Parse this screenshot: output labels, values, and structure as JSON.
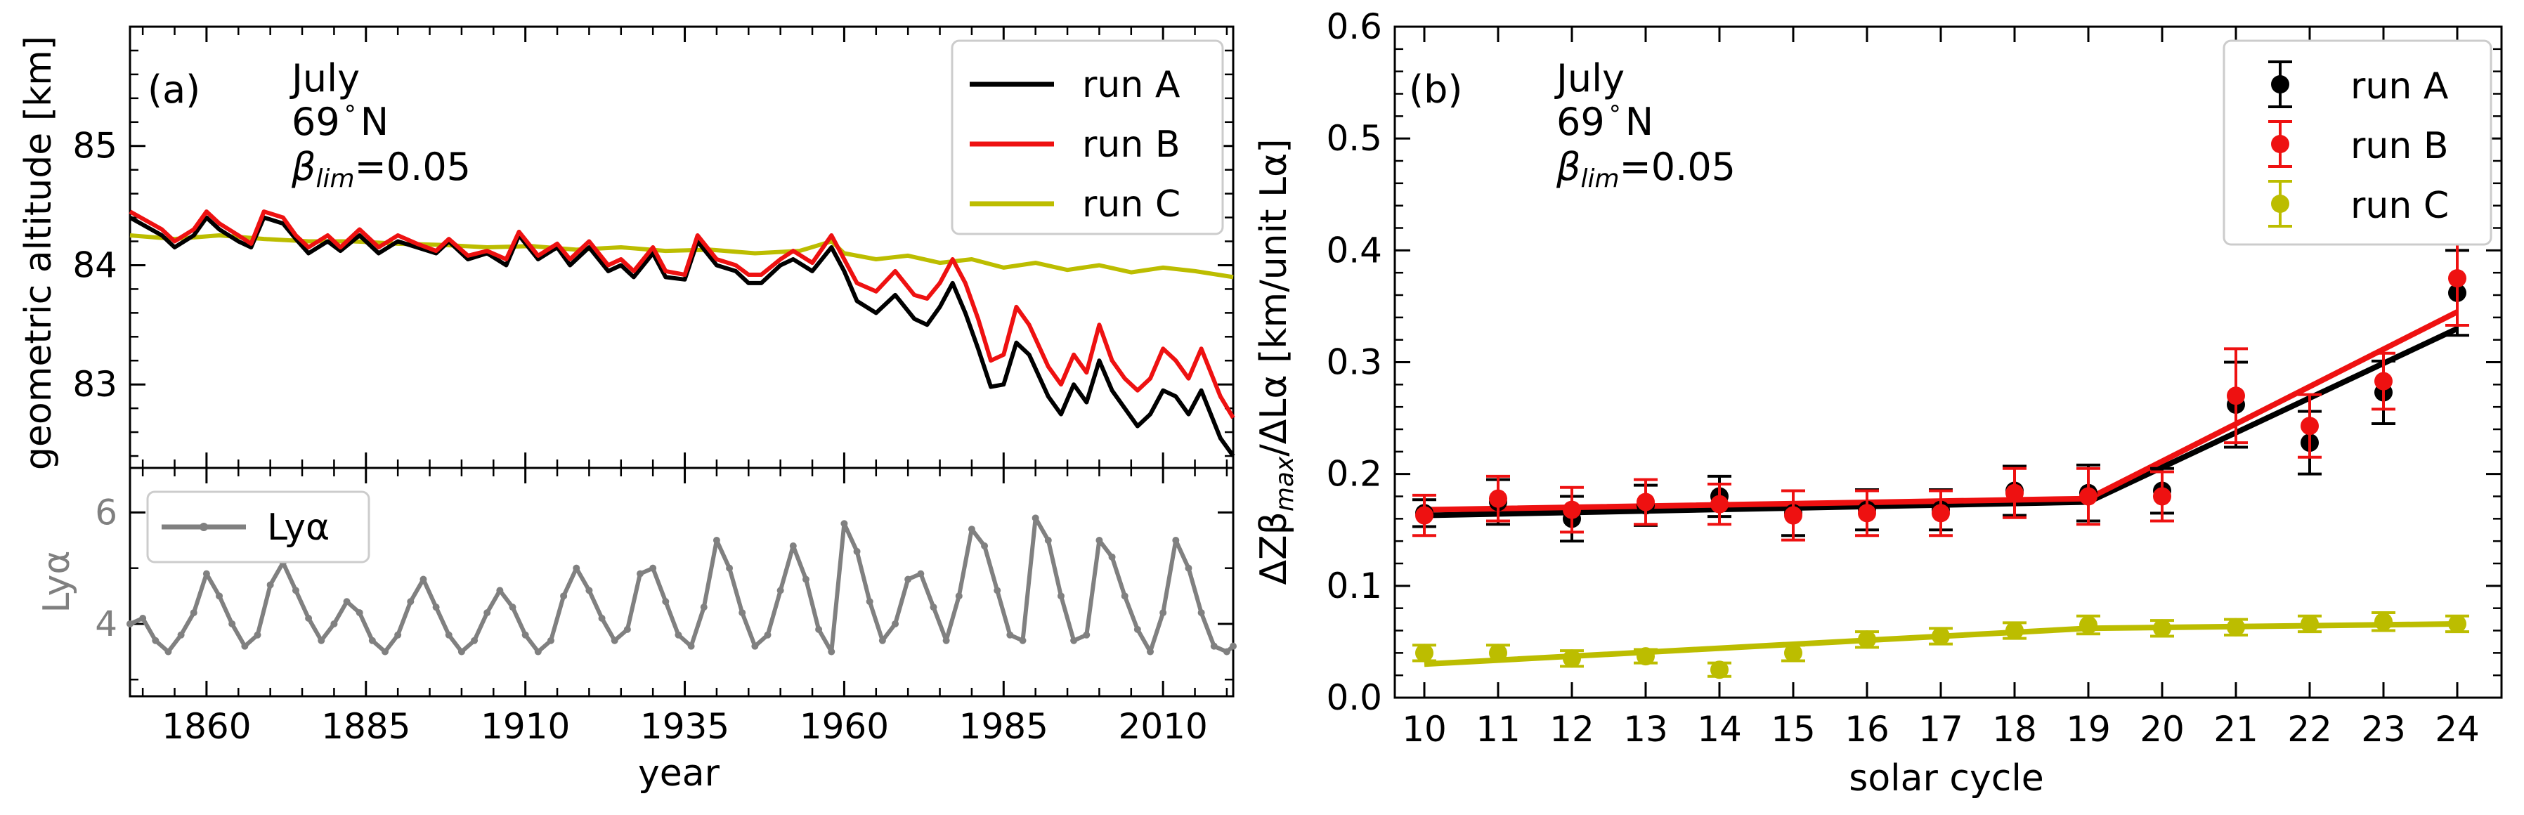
{
  "chart_data": [
    {
      "panel": "(a)",
      "type": "line",
      "annotation": [
        "July",
        "69",
        "N"
      ],
      "beta_sym": "β",
      "beta_sub": "lim",
      "beta_val": "=0.05",
      "degree_sym": "°",
      "ylabel": "geometric altitude [km]",
      "xlim": [
        1848,
        2021
      ],
      "ylim": [
        82.3,
        86.0
      ],
      "yticks": [
        83,
        84,
        85
      ],
      "legend": [
        "run A",
        "run B",
        "run C"
      ],
      "colors": {
        "run A": "#000000",
        "run B": "#ee1111",
        "run C": "#bcbd00"
      },
      "series": [
        {
          "name": "run A",
          "x": [
            1848,
            1853,
            1855,
            1858,
            1860,
            1862,
            1865,
            1867,
            1869,
            1872,
            1874,
            1876,
            1879,
            1881,
            1884,
            1887,
            1890,
            1893,
            1896,
            1898,
            1901,
            1904,
            1907,
            1909,
            1912,
            1915,
            1917,
            1920,
            1923,
            1925,
            1927,
            1930,
            1932,
            1935,
            1937,
            1940,
            1943,
            1945,
            1947,
            1950,
            1952,
            1955,
            1958,
            1960,
            1962,
            1965,
            1968,
            1971,
            1973,
            1975,
            1977,
            1979,
            1981,
            1983,
            1985,
            1987,
            1989,
            1992,
            1994,
            1996,
            1998,
            2000,
            2002,
            2004,
            2006,
            2008,
            2010,
            2012,
            2014,
            2016,
            2019,
            2021
          ],
          "y": [
            84.4,
            84.25,
            84.15,
            84.25,
            84.4,
            84.3,
            84.2,
            84.15,
            84.4,
            84.35,
            84.22,
            84.1,
            84.2,
            84.12,
            84.25,
            84.1,
            84.2,
            84.15,
            84.1,
            84.2,
            84.05,
            84.1,
            84.0,
            84.25,
            84.05,
            84.15,
            84.0,
            84.15,
            83.95,
            84.0,
            83.9,
            84.1,
            83.9,
            83.88,
            84.2,
            84.0,
            83.95,
            83.85,
            83.85,
            84.0,
            84.05,
            83.95,
            84.15,
            83.95,
            83.7,
            83.6,
            83.75,
            83.55,
            83.5,
            83.65,
            83.85,
            83.6,
            83.3,
            82.98,
            83.0,
            83.35,
            83.25,
            82.9,
            82.75,
            83.0,
            82.85,
            83.2,
            82.95,
            82.8,
            82.65,
            82.75,
            82.95,
            82.9,
            82.75,
            82.95,
            82.55,
            82.4
          ]
        },
        {
          "name": "run B",
          "x": [
            1848,
            1853,
            1855,
            1858,
            1860,
            1862,
            1865,
            1867,
            1869,
            1872,
            1874,
            1876,
            1879,
            1881,
            1884,
            1887,
            1890,
            1893,
            1896,
            1898,
            1901,
            1904,
            1907,
            1909,
            1912,
            1915,
            1917,
            1920,
            1923,
            1925,
            1927,
            1930,
            1932,
            1935,
            1937,
            1940,
            1943,
            1945,
            1947,
            1950,
            1952,
            1955,
            1958,
            1960,
            1962,
            1965,
            1968,
            1971,
            1973,
            1975,
            1977,
            1979,
            1981,
            1983,
            1985,
            1987,
            1989,
            1992,
            1994,
            1996,
            1998,
            2000,
            2002,
            2004,
            2006,
            2008,
            2010,
            2012,
            2014,
            2016,
            2019,
            2021
          ],
          "y": [
            84.45,
            84.3,
            84.2,
            84.3,
            84.45,
            84.35,
            84.25,
            84.18,
            84.45,
            84.4,
            84.25,
            84.15,
            84.25,
            84.15,
            84.3,
            84.15,
            84.25,
            84.18,
            84.12,
            84.22,
            84.08,
            84.12,
            84.05,
            84.28,
            84.08,
            84.18,
            84.05,
            84.2,
            84.0,
            84.05,
            83.95,
            84.15,
            83.95,
            83.92,
            84.25,
            84.05,
            84.0,
            83.92,
            83.92,
            84.05,
            84.12,
            84.02,
            84.25,
            84.05,
            83.85,
            83.78,
            83.95,
            83.75,
            83.72,
            83.85,
            84.05,
            83.85,
            83.55,
            83.2,
            83.25,
            83.65,
            83.5,
            83.15,
            83.0,
            83.25,
            83.1,
            83.5,
            83.2,
            83.05,
            82.95,
            83.05,
            83.3,
            83.2,
            83.05,
            83.3,
            82.9,
            82.72
          ]
        },
        {
          "name": "run C",
          "x": [
            1848,
            1855,
            1862,
            1869,
            1876,
            1883,
            1890,
            1897,
            1904,
            1911,
            1918,
            1925,
            1932,
            1939,
            1946,
            1953,
            1958,
            1960,
            1965,
            1970,
            1975,
            1980,
            1985,
            1990,
            1995,
            2000,
            2005,
            2010,
            2015,
            2021
          ],
          "y": [
            84.25,
            84.22,
            84.25,
            84.22,
            84.2,
            84.2,
            84.18,
            84.17,
            84.15,
            84.16,
            84.13,
            84.15,
            84.12,
            84.13,
            84.1,
            84.12,
            84.2,
            84.1,
            84.05,
            84.08,
            84.02,
            84.05,
            83.98,
            84.02,
            83.96,
            84.0,
            83.94,
            83.98,
            83.95,
            83.9
          ]
        }
      ]
    },
    {
      "panel": "(a) lower",
      "type": "line",
      "ylabel": "Lyα",
      "xlabel": "year",
      "xlim": [
        1848,
        2021
      ],
      "ylim": [
        2.7,
        6.8
      ],
      "xticks": [
        1860,
        1885,
        1910,
        1935,
        1960,
        1985,
        2010
      ],
      "yticks": [
        4,
        6
      ],
      "legend": [
        "Lyα"
      ],
      "color": "#808080",
      "series": [
        {
          "name": "Lyα",
          "x": [
            1848,
            1850,
            1852,
            1854,
            1856,
            1858,
            1860,
            1862,
            1864,
            1866,
            1868,
            1870,
            1872,
            1874,
            1876,
            1878,
            1880,
            1882,
            1884,
            1886,
            1888,
            1890,
            1892,
            1894,
            1896,
            1898,
            1900,
            1902,
            1904,
            1906,
            1908,
            1910,
            1912,
            1914,
            1916,
            1918,
            1920,
            1922,
            1924,
            1926,
            1928,
            1930,
            1932,
            1934,
            1936,
            1938,
            1940,
            1942,
            1944,
            1946,
            1948,
            1950,
            1952,
            1954,
            1956,
            1958,
            1960,
            1962,
            1964,
            1966,
            1968,
            1970,
            1972,
            1974,
            1976,
            1978,
            1980,
            1982,
            1984,
            1986,
            1988,
            1990,
            1992,
            1994,
            1996,
            1998,
            2000,
            2002,
            2004,
            2006,
            2008,
            2010,
            2012,
            2014,
            2016,
            2018,
            2020,
            2021
          ],
          "y": [
            4.0,
            4.1,
            3.7,
            3.5,
            3.8,
            4.2,
            4.9,
            4.5,
            4.0,
            3.6,
            3.8,
            4.7,
            5.1,
            4.6,
            4.1,
            3.7,
            4.0,
            4.4,
            4.2,
            3.7,
            3.5,
            3.8,
            4.4,
            4.8,
            4.3,
            3.8,
            3.5,
            3.7,
            4.2,
            4.6,
            4.3,
            3.8,
            3.5,
            3.7,
            4.5,
            5.0,
            4.6,
            4.1,
            3.7,
            3.9,
            4.9,
            5.0,
            4.4,
            3.8,
            3.6,
            4.3,
            5.5,
            5.0,
            4.2,
            3.6,
            3.8,
            4.6,
            5.4,
            4.8,
            3.9,
            3.5,
            5.8,
            5.3,
            4.4,
            3.7,
            4.0,
            4.8,
            4.9,
            4.3,
            3.7,
            4.5,
            5.7,
            5.4,
            4.6,
            3.8,
            3.7,
            5.9,
            5.5,
            4.5,
            3.7,
            3.8,
            5.5,
            5.2,
            4.5,
            3.9,
            3.5,
            4.2,
            5.5,
            5.0,
            4.2,
            3.6,
            3.5,
            3.6
          ]
        }
      ]
    },
    {
      "panel": "(b)",
      "type": "scatter",
      "annotation": [
        "July",
        "69",
        "N"
      ],
      "beta_sym": "β",
      "beta_sub": "lim",
      "beta_val": "=0.05",
      "degree_sym": "°",
      "ylabel_parts": [
        "ΔZβ",
        "max",
        "/ΔLα [km/unit Lα]"
      ],
      "xlabel": "solar cycle",
      "xlim": [
        9.6,
        24.6
      ],
      "ylim": [
        0.0,
        0.6
      ],
      "xticks": [
        10,
        11,
        12,
        13,
        14,
        15,
        16,
        17,
        18,
        19,
        20,
        21,
        22,
        23,
        24
      ],
      "ytick_labels": [
        "0.0",
        "0.1",
        "0.2",
        "0.3",
        "0.4",
        "0.5",
        "0.6"
      ],
      "legend": [
        "run A",
        "run B",
        "run C"
      ],
      "colors": {
        "run A": "#000000",
        "run B": "#ee1111",
        "run C": "#bcbd00"
      },
      "series": [
        {
          "name": "run A",
          "x": [
            10,
            11,
            12,
            13,
            14,
            15,
            16,
            17,
            18,
            19,
            20,
            21,
            22,
            23,
            24
          ],
          "y": [
            0.165,
            0.175,
            0.16,
            0.172,
            0.18,
            0.165,
            0.168,
            0.168,
            0.185,
            0.183,
            0.185,
            0.262,
            0.228,
            0.273,
            0.362
          ],
          "err": [
            0.012,
            0.02,
            0.02,
            0.018,
            0.018,
            0.02,
            0.018,
            0.018,
            0.022,
            0.025,
            0.02,
            0.038,
            0.028,
            0.028,
            0.038
          ],
          "fit": [
            [
              10,
              0.163
            ],
            [
              19,
              0.175
            ],
            [
              24,
              0.33
            ]
          ]
        },
        {
          "name": "run B",
          "x": [
            10,
            11,
            12,
            13,
            14,
            15,
            16,
            17,
            18,
            19,
            20,
            21,
            22,
            23,
            24
          ],
          "y": [
            0.163,
            0.178,
            0.168,
            0.175,
            0.173,
            0.163,
            0.165,
            0.165,
            0.183,
            0.18,
            0.18,
            0.27,
            0.243,
            0.283,
            0.375
          ],
          "err": [
            0.018,
            0.02,
            0.02,
            0.02,
            0.018,
            0.022,
            0.02,
            0.02,
            0.022,
            0.025,
            0.022,
            0.042,
            0.028,
            0.025,
            0.042
          ],
          "fit": [
            [
              10,
              0.168
            ],
            [
              19,
              0.178
            ],
            [
              24,
              0.345
            ]
          ]
        },
        {
          "name": "run C",
          "x": [
            10,
            11,
            12,
            13,
            14,
            15,
            16,
            17,
            18,
            19,
            20,
            21,
            22,
            23,
            24
          ],
          "y": [
            0.04,
            0.04,
            0.035,
            0.037,
            0.025,
            0.04,
            0.052,
            0.055,
            0.06,
            0.065,
            0.062,
            0.063,
            0.066,
            0.068,
            0.066
          ],
          "err": [
            0.007,
            0.007,
            0.007,
            0.006,
            0.006,
            0.007,
            0.007,
            0.007,
            0.007,
            0.008,
            0.007,
            0.007,
            0.007,
            0.008,
            0.007
          ],
          "fit": [
            [
              10,
              0.03
            ],
            [
              19,
              0.062
            ],
            [
              24,
              0.066
            ]
          ]
        }
      ]
    }
  ]
}
